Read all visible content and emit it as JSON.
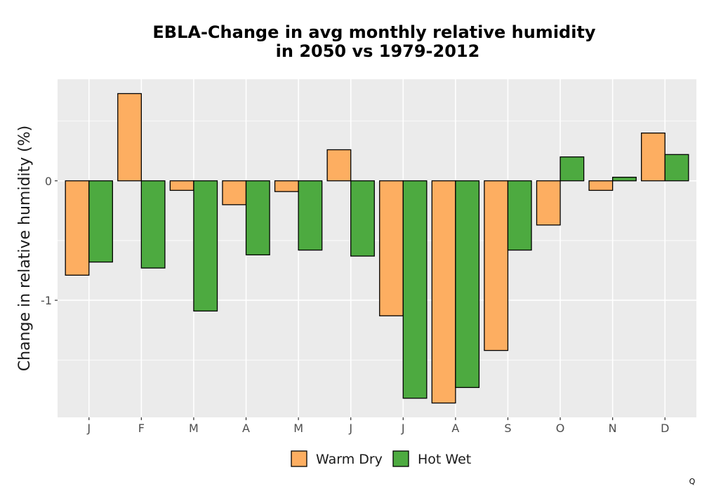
{
  "chart_data": {
    "type": "bar",
    "title_line1": "EBLA-Change in avg monthly relative humidity",
    "title_line2": "in 2050 vs 1979-2012",
    "xlabel": "",
    "ylabel": "Change in relative humidity (%)",
    "categories": [
      "J",
      "F",
      "M",
      "A",
      "M",
      "J",
      "J",
      "A",
      "S",
      "O",
      "N",
      "D"
    ],
    "y_ticks": [
      0,
      -1
    ],
    "y_tick_labels": [
      "0",
      "-1"
    ],
    "ylim": [
      -1.98,
      0.85
    ],
    "grid": true,
    "legend_position": "bottom",
    "series": [
      {
        "name": "Warm Dry",
        "color": "#fdae61",
        "values": [
          -0.79,
          0.73,
          -0.08,
          -0.2,
          -0.09,
          0.26,
          -1.13,
          -1.86,
          -1.42,
          -0.37,
          -0.08,
          0.4
        ]
      },
      {
        "name": "Hot Wet",
        "color": "#4daa40",
        "values": [
          -0.68,
          -0.73,
          -1.09,
          -0.62,
          -0.58,
          -0.63,
          -1.82,
          -1.73,
          -0.58,
          0.2,
          0.03,
          0.22
        ]
      }
    ]
  },
  "corner_mark": "Q"
}
